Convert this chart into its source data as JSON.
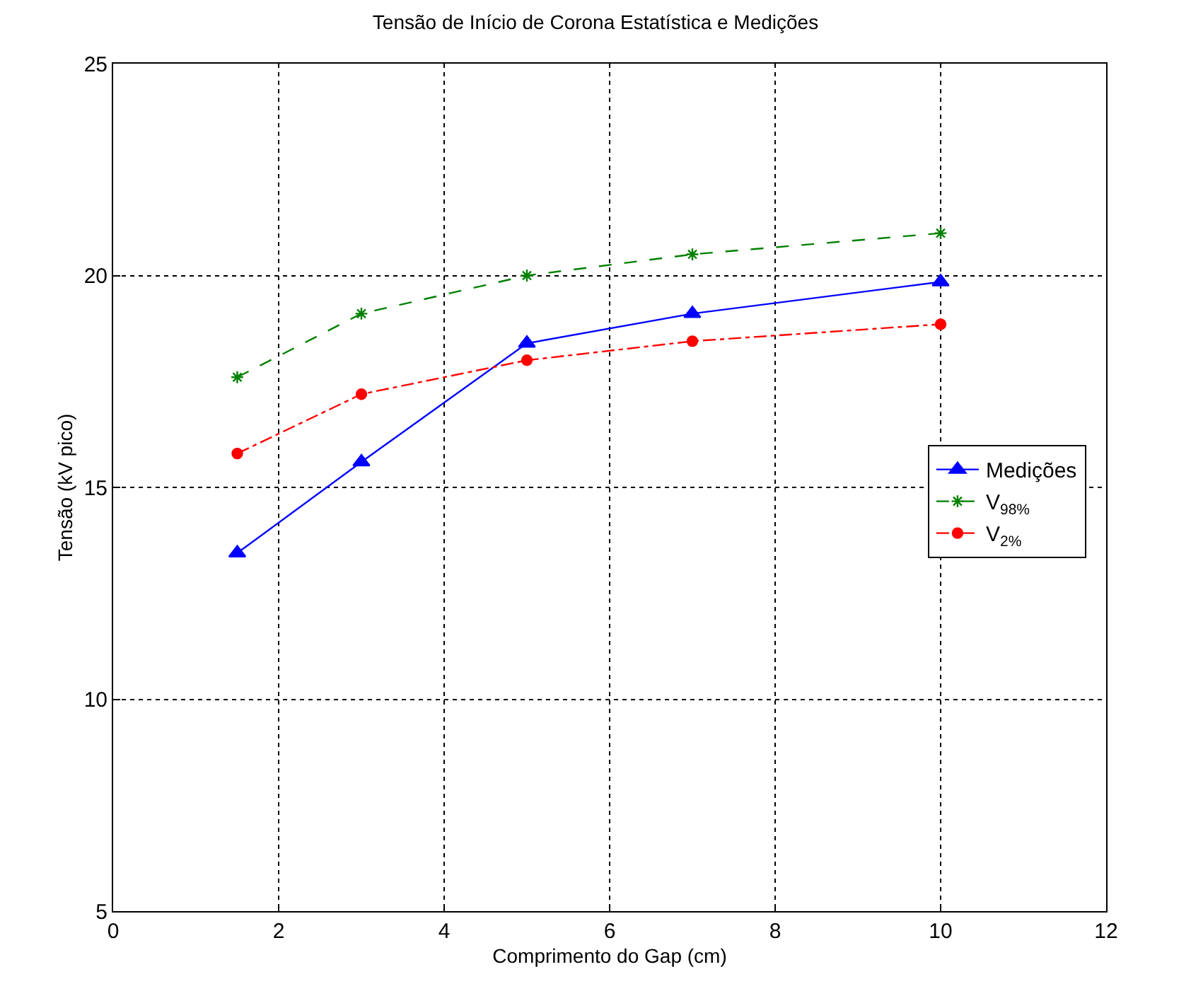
{
  "chart_data": {
    "type": "line",
    "title": "Tensão de Início de Corona Estatística e Medições",
    "xlabel": "Comprimento do Gap (cm)",
    "ylabel": "Tensão (kV pico)",
    "x": [
      1.5,
      3,
      5,
      7,
      10
    ],
    "series": [
      {
        "name": "Medições",
        "color": "#0000ff",
        "marker": "triangle",
        "line_style": "solid",
        "values": [
          13.45,
          15.6,
          18.4,
          19.1,
          19.85
        ]
      },
      {
        "name": "V$_{98%}$",
        "color": "#008000",
        "marker": "cross",
        "line_style": "dashed",
        "values": [
          17.6,
          19.1,
          20.0,
          20.5,
          21.0
        ]
      },
      {
        "name": "V$_{2%}$",
        "color": "#ff0000",
        "marker": "circle",
        "line_style": "dashdot",
        "values": [
          15.8,
          17.2,
          18.0,
          18.45,
          18.85
        ]
      }
    ],
    "xlim": [
      0,
      12
    ],
    "xticks": [
      0,
      2,
      4,
      6,
      8,
      10,
      12
    ],
    "ylim": [
      5,
      25
    ],
    "yticks": [
      5,
      10,
      15,
      20,
      25
    ],
    "grid": true,
    "legend": "right"
  }
}
